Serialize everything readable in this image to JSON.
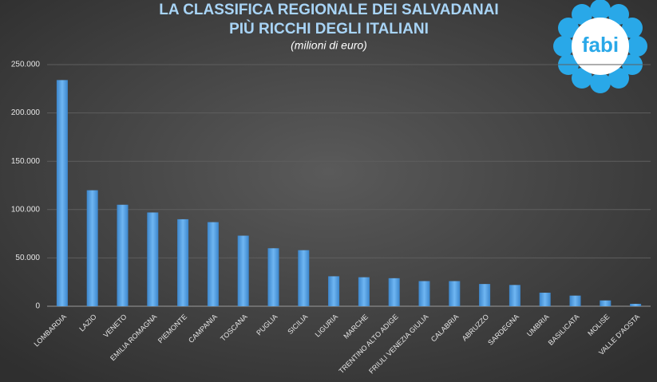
{
  "chart_data": {
    "type": "bar",
    "title": [
      "LA CLASSIFICA REGIONALE DEI SALVADANAI",
      "PIÙ RICCHI DEGLI ITALIANI"
    ],
    "subtitle": "(milioni di euro)",
    "categories": [
      "LOMBARDIA",
      "LAZIO",
      "VENETO",
      "EMILIA ROMAGNA",
      "PIEMONTE",
      "CAMPANIA",
      "TOSCANA",
      "PUGLIA",
      "SICILIA",
      "LIGURIA",
      "MARCHE",
      "TRENTINO ALTO ADIGE",
      "FRIULI VENEZIA GIULIA",
      "CALABRIA",
      "ABRUZZO",
      "SARDEGNA",
      "UMBRIA",
      "BASILICATA",
      "MOLISE",
      "VALLE D'AOSTA"
    ],
    "values": [
      234000,
      120000,
      105000,
      97000,
      90000,
      87000,
      73000,
      60000,
      58000,
      31000,
      30000,
      29000,
      26000,
      26000,
      23000,
      22000,
      14000,
      11000,
      6000,
      2500
    ],
    "color": "#5aa6ea",
    "ylim": [
      0,
      250000
    ],
    "yticks": [
      0,
      {
        "value": 50000,
        "label": "50.000"
      },
      {
        "value": 100000,
        "label": "100.000"
      },
      {
        "value": 150000,
        "label": "150.000"
      },
      {
        "value": 200000,
        "label": "200.000"
      },
      {
        "value": 250000,
        "label": "250.000"
      }
    ],
    "grid": true
  },
  "logo": "fabi"
}
